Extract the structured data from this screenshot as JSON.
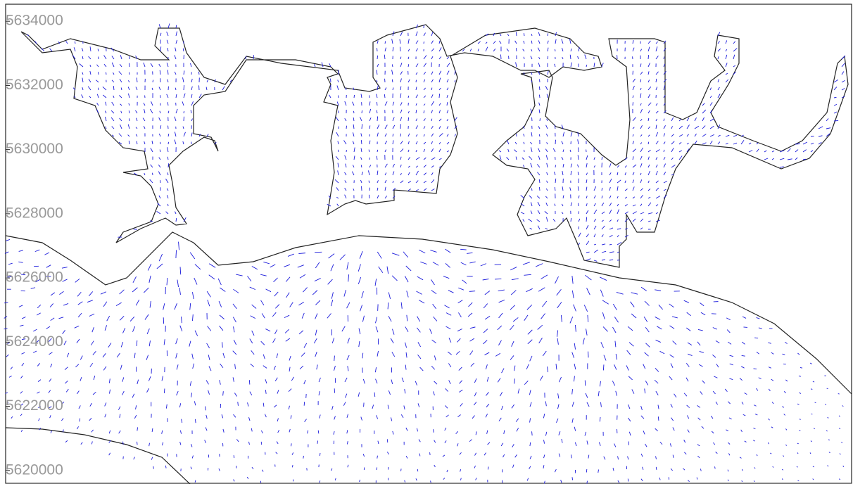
{
  "map": {
    "type": "quiver",
    "ylim": [
      5619580,
      5634530
    ],
    "yticks": [
      5620000,
      5622000,
      5624000,
      5626000,
      5628000,
      5630000,
      5632000,
      5634000
    ]
  }
}
